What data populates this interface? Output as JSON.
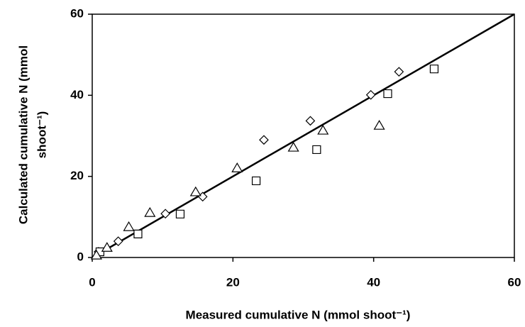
{
  "chart_data": {
    "type": "scatter",
    "x_label": "Measured cumulative N (mmol shoot⁻¹)",
    "y_label": [
      "Calculated cumulative N (mmol",
      "shoot⁻¹)"
    ],
    "xlim": [
      0,
      60
    ],
    "ylim": [
      0,
      60
    ],
    "xticks": [
      0,
      20,
      40,
      60
    ],
    "yticks": [
      0,
      20,
      40,
      60
    ],
    "series": [
      {
        "marker": "diamond",
        "color": "#000000",
        "x": [
          0.9,
          3.7,
          10.4,
          15.7,
          24.4,
          31.0,
          39.6,
          43.6
        ],
        "values": [
          1.4,
          4.0,
          10.8,
          15.0,
          29.0,
          33.7,
          40.1,
          45.8
        ]
      },
      {
        "marker": "square",
        "color": "#000000",
        "x": [
          1.1,
          6.5,
          12.5,
          23.3,
          31.9,
          42.0,
          48.6
        ],
        "values": [
          1.4,
          5.8,
          10.7,
          18.9,
          26.6,
          40.4,
          46.5
        ]
      },
      {
        "marker": "triangle",
        "color": "#000000",
        "x": [
          0.6,
          2.1,
          5.2,
          8.2,
          14.7,
          20.6,
          28.6,
          32.8,
          40.8
        ],
        "values": [
          0.5,
          2.4,
          7.5,
          11.0,
          16.1,
          22.0,
          27.1,
          31.3,
          32.5
        ]
      }
    ],
    "reference_line": {
      "x": [
        0,
        60
      ],
      "values": [
        0,
        60
      ],
      "color": "#000000"
    }
  }
}
